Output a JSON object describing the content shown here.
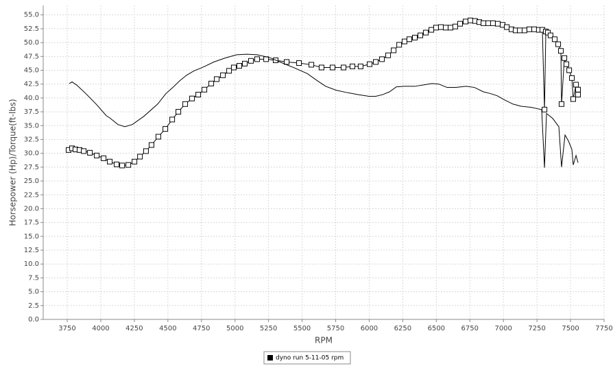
{
  "chart_data": {
    "type": "line",
    "x_label": "RPM",
    "y_label": "Horsepower (Hp)/Torque(ft-lbs)",
    "xlim": [
      3571,
      7750
    ],
    "ylim": [
      0,
      56.7
    ],
    "grid": true,
    "xticks": [
      3750,
      4000,
      4250,
      4500,
      4750,
      5000,
      5250,
      5500,
      5750,
      6000,
      6250,
      6500,
      6750,
      7000,
      7250,
      7500,
      7750
    ],
    "yticks": [
      {
        "value": 0,
        "label": "0.0"
      },
      {
        "value": 2.5,
        "label": "2.5"
      },
      {
        "value": 5,
        "label": "5.0"
      },
      {
        "value": 7.5,
        "label": "7.5"
      },
      {
        "value": 10,
        "label": "10.0"
      },
      {
        "value": 12.5,
        "label": "12.5"
      },
      {
        "value": 15,
        "label": "15.0"
      },
      {
        "value": 17.5,
        "label": "17.5"
      },
      {
        "value": 20,
        "label": "20.0"
      },
      {
        "value": 22.5,
        "label": "22.5"
      },
      {
        "value": 25,
        "label": "25.0"
      },
      {
        "value": 27.5,
        "label": "27.5"
      },
      {
        "value": 30,
        "label": "30.0"
      },
      {
        "value": 32.5,
        "label": "32.5"
      },
      {
        "value": 35,
        "label": "35.0"
      },
      {
        "value": 37.5,
        "label": "37.5"
      },
      {
        "value": 40,
        "label": "40.0"
      },
      {
        "value": 42.5,
        "label": "42.5"
      },
      {
        "value": 45,
        "label": "45.0"
      },
      {
        "value": 47.5,
        "label": "47.5"
      },
      {
        "value": 50,
        "label": "50.0"
      },
      {
        "value": 52.5,
        "label": "52.5"
      },
      {
        "value": 55,
        "label": "55.0"
      }
    ],
    "series": [
      {
        "name": "dyno run 5-11-05 rpm",
        "color": "#000000",
        "marker": "square",
        "x": [
          3760,
          3786,
          3811,
          3842,
          3873,
          3919,
          3970,
          4021,
          4067,
          4118,
          4159,
          4205,
          4251,
          4292,
          4337,
          4378,
          4429,
          4481,
          4532,
          4578,
          4629,
          4680,
          4726,
          4772,
          4823,
          4864,
          4910,
          4956,
          4991,
          5032,
          5073,
          5119,
          5165,
          5232,
          5303,
          5385,
          5477,
          5569,
          5645,
          5727,
          5809,
          5875,
          5936,
          6003,
          6049,
          6095,
          6141,
          6182,
          6223,
          6263,
          6299,
          6340,
          6381,
          6422,
          6463,
          6498,
          6534,
          6570,
          6606,
          6641,
          6677,
          6718,
          6754,
          6789,
          6820,
          6851,
          6887,
          6922,
          6958,
          6994,
          7025,
          7060,
          7091,
          7122,
          7157,
          7193,
          7229,
          7264,
          7290,
          7306,
          7316,
          7331,
          7351,
          7382,
          7408,
          7428,
          7433,
          7454,
          7469,
          7490,
          7510,
          7520,
          7541,
          7556,
          7556
        ],
        "values": [
          30.6,
          30.9,
          30.7,
          30.6,
          30.4,
          30.1,
          29.6,
          29.1,
          28.5,
          28.0,
          27.8,
          27.9,
          28.5,
          29.4,
          30.4,
          31.5,
          33.0,
          34.4,
          36.1,
          37.5,
          38.9,
          39.9,
          40.6,
          41.5,
          42.6,
          43.4,
          44.1,
          44.9,
          45.5,
          45.8,
          46.2,
          46.7,
          47.0,
          47.0,
          46.8,
          46.5,
          46.3,
          46.0,
          45.5,
          45.5,
          45.5,
          45.7,
          45.7,
          46.1,
          46.5,
          47.0,
          47.7,
          48.6,
          49.6,
          50.2,
          50.6,
          50.9,
          51.3,
          51.8,
          52.3,
          52.7,
          52.8,
          52.7,
          52.7,
          52.9,
          53.4,
          53.8,
          54.0,
          53.9,
          53.7,
          53.5,
          53.5,
          53.5,
          53.4,
          53.2,
          52.8,
          52.4,
          52.2,
          52.2,
          52.2,
          52.4,
          52.4,
          52.3,
          52.3,
          37.9,
          52.0,
          51.8,
          51.3,
          50.6,
          49.7,
          48.5,
          38.9,
          47.2,
          46.1,
          45.0,
          43.6,
          39.8,
          42.4,
          40.6,
          41.5
        ]
      },
      {
        "color": "#000000",
        "x": [
          3765,
          3786,
          3822,
          3888,
          3965,
          4041,
          4067,
          4128,
          4179,
          4235,
          4322,
          4424,
          4486,
          4537,
          4588,
          4639,
          4695,
          4757,
          4843,
          4925,
          5012,
          5088,
          5165,
          5257,
          5354,
          5446,
          5538,
          5620,
          5676,
          5753,
          5829,
          5916,
          5998,
          6049,
          6100,
          6151,
          6202,
          6263,
          6340,
          6417,
          6468,
          6519,
          6580,
          6646,
          6723,
          6784,
          6851,
          6902,
          6953,
          7004,
          7070,
          7131,
          7208,
          7264,
          7285,
          7306,
          7321,
          7367,
          7413,
          7433,
          7459,
          7485,
          7510,
          7520,
          7541,
          7556
        ],
        "values": [
          42.6,
          42.9,
          42.3,
          40.8,
          38.9,
          36.8,
          36.4,
          35.2,
          34.8,
          35.2,
          36.7,
          38.9,
          40.8,
          41.9,
          43.1,
          44.1,
          44.9,
          45.5,
          46.5,
          47.2,
          47.8,
          47.9,
          47.8,
          47.3,
          46.3,
          45.4,
          44.4,
          43.0,
          42.1,
          41.4,
          41.0,
          40.6,
          40.3,
          40.3,
          40.6,
          41.1,
          42.0,
          42.1,
          42.1,
          42.4,
          42.6,
          42.5,
          41.9,
          41.9,
          42.1,
          41.9,
          41.1,
          40.8,
          40.4,
          39.7,
          38.9,
          38.5,
          38.3,
          38.0,
          37.9,
          27.4,
          37.2,
          36.3,
          34.8,
          27.5,
          33.3,
          32.2,
          30.7,
          27.9,
          29.6,
          28.3
        ]
      }
    ]
  }
}
